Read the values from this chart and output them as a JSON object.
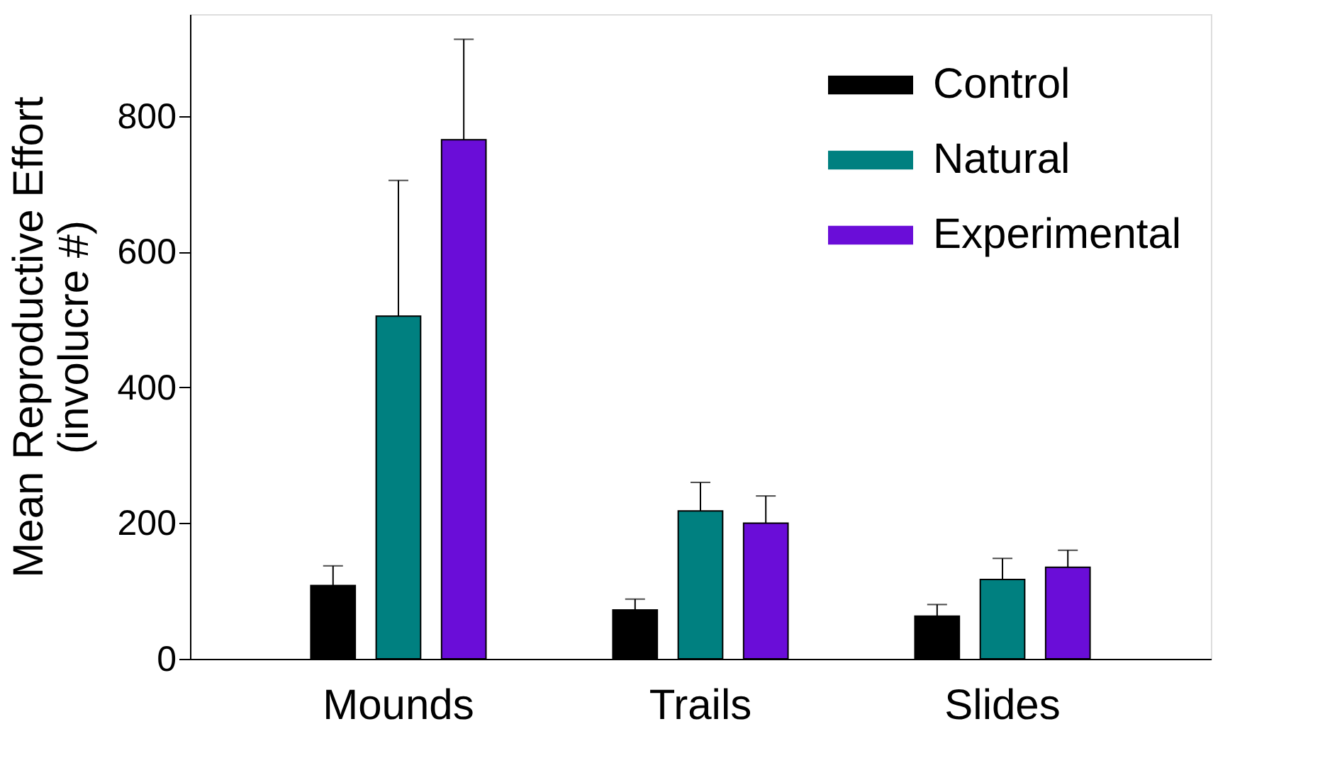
{
  "chart_data": {
    "type": "bar",
    "ylabel": "Mean Reproductive Effort\n(involucre #)",
    "categories": [
      "Mounds",
      "Trails",
      "Slides"
    ],
    "series": [
      {
        "name": "Control",
        "color": "#000000",
        "values": [
          108,
          72,
          63
        ],
        "errors": [
          [
            108,
            137
          ],
          [
            72,
            88
          ],
          [
            63,
            80
          ]
        ]
      },
      {
        "name": "Natural",
        "color": "#008080",
        "values": [
          505,
          218,
          117
        ],
        "errors": [
          [
            505,
            705
          ],
          [
            218,
            260
          ],
          [
            117,
            148
          ]
        ]
      },
      {
        "name": "Experimental",
        "color": "#6a0dd8",
        "values": [
          765,
          200,
          135
        ],
        "errors": [
          [
            765,
            913
          ],
          [
            200,
            240
          ],
          [
            135,
            160
          ]
        ]
      }
    ],
    "ylim": [
      0,
      950
    ],
    "yticks": [
      0,
      200,
      400,
      600,
      800
    ],
    "grid": false,
    "legend": "top right"
  }
}
